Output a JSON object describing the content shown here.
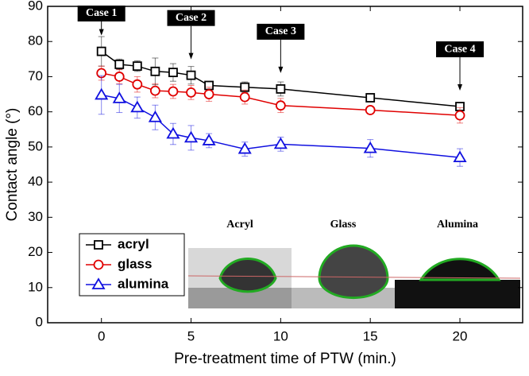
{
  "chart_data": {
    "type": "line",
    "x_label": "Pre-treatment time of PTW (min.)",
    "y_label": "Contact angle (°)",
    "x": [
      0,
      1,
      2,
      3,
      4,
      5,
      6,
      8,
      10,
      15,
      20
    ],
    "series": [
      {
        "name": "acryl",
        "color": "#000000",
        "marker": "square",
        "values": [
          77.2,
          73.5,
          73,
          71.5,
          71.2,
          70.4,
          67.5,
          67,
          66.5,
          64,
          61.5
        ],
        "errors": [
          4.2,
          1.5,
          1.5,
          3.8,
          2.5,
          2.5,
          1,
          1.5,
          2,
          1,
          1
        ]
      },
      {
        "name": "glass",
        "color": "#e00000",
        "marker": "circle",
        "values": [
          71,
          70,
          67.8,
          66,
          65.8,
          65.5,
          65,
          64.2,
          61.8,
          60.5,
          59
        ],
        "errors": [
          2,
          2,
          2.2,
          2,
          2,
          2,
          2,
          2,
          2,
          1,
          2.2
        ]
      },
      {
        "name": "alumina",
        "color": "#1010e0",
        "marker": "triangle",
        "values": [
          64.8,
          63.8,
          61.2,
          58.4,
          53.7,
          52.6,
          51.8,
          49.4,
          50.8,
          49.6,
          47
        ],
        "errors": [
          5.5,
          4,
          3,
          3.5,
          3,
          3.5,
          2,
          2,
          2,
          2.5,
          2.5
        ]
      }
    ],
    "xlim": [
      -3,
      23.5
    ],
    "xticks": [
      0,
      5,
      10,
      15,
      20
    ],
    "ylim": [
      0,
      90
    ],
    "yticks": [
      0,
      10,
      20,
      30,
      40,
      50,
      60,
      70,
      80,
      90
    ],
    "legend": "lower-left",
    "annotations": [
      {
        "text": "Case 1",
        "x": 0
      },
      {
        "text": "Case 2",
        "x": 5
      },
      {
        "text": "Case 3",
        "x": 10
      },
      {
        "text": "Case 4",
        "x": 20
      }
    ],
    "inset_labels": [
      "Acryl",
      "Glass",
      "Alumina"
    ]
  }
}
